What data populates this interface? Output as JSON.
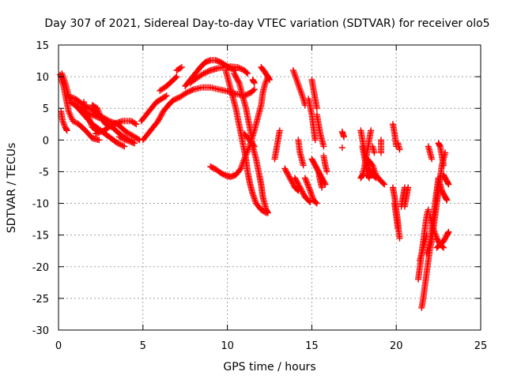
{
  "chart_data": {
    "type": "scatter",
    "title": "Day 307 of 2021, Sidereal Day-to-day VTEC variation (SDTVAR) for receiver olo5",
    "xlabel": "GPS time / hours",
    "ylabel": "SDTVAR / TECUs",
    "xlim": [
      0,
      25
    ],
    "ylim": [
      -30,
      15
    ],
    "xticks": [
      "0",
      "5",
      "10",
      "15",
      "20",
      "25"
    ],
    "yticks": [
      "15",
      "10",
      "5",
      "0",
      "-5",
      "-10",
      "-15",
      "-20",
      "-25",
      "-30"
    ],
    "grid": true,
    "marker": "+",
    "color": "#ff0000",
    "tracks": [
      [
        [
          0.1,
          10.3
        ],
        [
          0.3,
          8.5
        ],
        [
          0.45,
          6.5
        ],
        [
          0.6,
          4.5
        ],
        [
          0.85,
          3.0
        ],
        [
          1.2,
          2.5
        ],
        [
          1.6,
          1.5
        ],
        [
          2.0,
          0.3
        ],
        [
          2.4,
          0.0
        ]
      ],
      [
        [
          0.2,
          10.5
        ],
        [
          0.4,
          9.0
        ],
        [
          0.55,
          7.5
        ],
        [
          0.7,
          6.0
        ],
        [
          1.0,
          5.5
        ],
        [
          1.5,
          4.5
        ],
        [
          2.0,
          4.0
        ],
        [
          2.4,
          3.5
        ]
      ],
      [
        [
          0.15,
          4.5
        ],
        [
          0.25,
          3.0
        ],
        [
          0.4,
          2.0
        ],
        [
          0.5,
          1.5
        ]
      ],
      [
        [
          0.5,
          7.0
        ],
        [
          1.0,
          6.5
        ],
        [
          1.5,
          5.5
        ],
        [
          2.0,
          4.8
        ],
        [
          2.5,
          3.8
        ],
        [
          3.0,
          3.0
        ],
        [
          3.5,
          2.5
        ],
        [
          4.0,
          1.3
        ],
        [
          4.5,
          0.5
        ],
        [
          4.8,
          0.0
        ]
      ],
      [
        [
          1.0,
          5.5
        ],
        [
          1.5,
          4.0
        ],
        [
          2.0,
          2.5
        ],
        [
          2.5,
          1.5
        ],
        [
          3.0,
          0.5
        ],
        [
          3.5,
          -0.5
        ],
        [
          3.9,
          -1.0
        ]
      ],
      [
        [
          1.5,
          6.0
        ],
        [
          1.6,
          4.5
        ],
        [
          1.8,
          3.5
        ],
        [
          2.0,
          2.0
        ],
        [
          2.3,
          1.5
        ]
      ],
      [
        [
          2.0,
          5.5
        ],
        [
          2.3,
          5.0
        ],
        [
          2.5,
          3.5
        ],
        [
          2.8,
          2.5
        ],
        [
          3.2,
          2.0
        ],
        [
          3.6,
          1.0
        ],
        [
          4.0,
          0.3
        ],
        [
          4.5,
          -0.5
        ]
      ],
      [
        [
          2.2,
          1.0
        ],
        [
          2.7,
          1.5
        ],
        [
          3.2,
          2.5
        ],
        [
          3.8,
          3.0
        ],
        [
          4.3,
          3.0
        ],
        [
          4.6,
          2.5
        ]
      ],
      [
        [
          3.6,
          0.5
        ],
        [
          4.0,
          0.0
        ],
        [
          4.5,
          -0.5
        ]
      ],
      [
        [
          4.9,
          3.0
        ],
        [
          5.2,
          4.0
        ],
        [
          5.5,
          5.0
        ],
        [
          5.8,
          6.0
        ],
        [
          6.1,
          6.5
        ],
        [
          6.4,
          7.0
        ]
      ],
      [
        [
          5.0,
          0.0
        ],
        [
          5.3,
          1.0
        ],
        [
          5.6,
          2.0
        ],
        [
          5.9,
          3.0
        ],
        [
          6.2,
          4.5
        ],
        [
          6.5,
          5.5
        ],
        [
          6.8,
          6.3
        ],
        [
          7.2,
          6.8
        ],
        [
          7.6,
          7.5
        ],
        [
          8.0,
          8.0
        ],
        [
          8.5,
          8.3
        ],
        [
          9.0,
          8.3
        ],
        [
          9.5,
          8.0
        ],
        [
          10.0,
          7.7
        ],
        [
          10.5,
          7.3
        ],
        [
          11.0,
          7.0
        ],
        [
          11.4,
          7.5
        ],
        [
          11.6,
          8.0
        ]
      ],
      [
        [
          6.0,
          7.8
        ],
        [
          6.4,
          8.5
        ],
        [
          6.8,
          9.5
        ],
        [
          7.0,
          10.0
        ]
      ],
      [
        [
          7.0,
          11.0
        ],
        [
          7.3,
          11.5
        ]
      ],
      [
        [
          7.5,
          8.5
        ],
        [
          7.8,
          9.5
        ],
        [
          8.1,
          10.5
        ],
        [
          8.4,
          11.5
        ],
        [
          8.7,
          12.3
        ],
        [
          9.0,
          12.6
        ],
        [
          9.3,
          12.6
        ],
        [
          9.6,
          12.3
        ],
        [
          9.9,
          11.8
        ],
        [
          10.2,
          11.3
        ],
        [
          10.5,
          11.0
        ]
      ],
      [
        [
          7.8,
          9.0
        ],
        [
          8.2,
          9.8
        ],
        [
          8.6,
          10.5
        ],
        [
          9.0,
          11.0
        ],
        [
          9.4,
          11.3
        ],
        [
          9.8,
          11.5
        ],
        [
          10.2,
          11.6
        ],
        [
          10.6,
          11.5
        ],
        [
          11.0,
          11.0
        ],
        [
          11.2,
          10.5
        ]
      ],
      [
        [
          10.4,
          10.5
        ],
        [
          10.7,
          9.0
        ],
        [
          10.9,
          7.0
        ],
        [
          11.1,
          5.0
        ],
        [
          11.25,
          3.0
        ],
        [
          11.4,
          1.0
        ],
        [
          11.5,
          -1.0
        ],
        [
          11.7,
          -3.0
        ],
        [
          11.85,
          -5.0
        ],
        [
          12.0,
          -7.0
        ],
        [
          12.1,
          -9.0
        ],
        [
          12.3,
          -11.0
        ],
        [
          12.4,
          -11.5
        ]
      ],
      [
        [
          9.9,
          11.0
        ],
        [
          10.1,
          9.0
        ],
        [
          10.3,
          7.0
        ],
        [
          10.5,
          5.0
        ],
        [
          10.65,
          3.0
        ],
        [
          10.8,
          1.0
        ],
        [
          10.95,
          -1.0
        ],
        [
          11.1,
          -3.0
        ],
        [
          11.2,
          -5.0
        ],
        [
          11.35,
          -7.0
        ],
        [
          11.5,
          -8.5
        ],
        [
          11.7,
          -10.0
        ],
        [
          12.0,
          -11.0
        ],
        [
          12.3,
          -11.5
        ]
      ],
      [
        [
          9.0,
          -4.2
        ],
        [
          9.3,
          -4.6
        ],
        [
          9.6,
          -5.2
        ],
        [
          9.9,
          -5.6
        ],
        [
          10.2,
          -5.8
        ],
        [
          10.5,
          -5.5
        ],
        [
          10.8,
          -4.5
        ],
        [
          11.0,
          -3.0
        ],
        [
          11.3,
          -1.0
        ],
        [
          11.6,
          1.5
        ],
        [
          11.8,
          3.5
        ],
        [
          12.0,
          5.5
        ],
        [
          12.1,
          7.5
        ],
        [
          12.25,
          9.0
        ],
        [
          12.4,
          10.0
        ]
      ],
      [
        [
          11.5,
          9.5
        ],
        [
          11.6,
          9.0
        ]
      ],
      [
        [
          12.0,
          11.5
        ],
        [
          12.2,
          10.8
        ],
        [
          12.4,
          10.0
        ],
        [
          12.5,
          9.5
        ]
      ],
      [
        [
          11.0,
          1.0
        ],
        [
          11.3,
          0.0
        ],
        [
          11.6,
          -1.0
        ]
      ],
      [
        [
          12.8,
          -3.0
        ],
        [
          13.0,
          0.0
        ],
        [
          13.1,
          1.5
        ]
      ],
      [
        [
          13.4,
          -4.5
        ],
        [
          13.7,
          -6.0
        ],
        [
          14.0,
          -7.5
        ],
        [
          14.2,
          -8.0
        ]
      ],
      [
        [
          13.9,
          11.0
        ],
        [
          14.1,
          9.5
        ],
        [
          14.3,
          8.0
        ],
        [
          14.5,
          6.5
        ],
        [
          14.6,
          5.5
        ]
      ],
      [
        [
          14.2,
          0.0
        ],
        [
          14.3,
          -2.0
        ],
        [
          14.5,
          -4.0
        ]
      ],
      [
        [
          14.0,
          -6.0
        ],
        [
          14.3,
          -7.5
        ],
        [
          14.6,
          -9.0
        ],
        [
          14.9,
          -9.8
        ]
      ],
      [
        [
          15.0,
          9.5
        ],
        [
          15.1,
          8.0
        ],
        [
          15.2,
          6.5
        ],
        [
          15.3,
          5.0
        ]
      ],
      [
        [
          14.8,
          6.5
        ],
        [
          15.0,
          4.0
        ],
        [
          15.1,
          2.0
        ],
        [
          15.2,
          0.0
        ]
      ],
      [
        [
          15.3,
          4.0
        ],
        [
          15.4,
          2.5
        ],
        [
          15.5,
          1.0
        ],
        [
          15.6,
          0.0
        ],
        [
          15.7,
          -1.0
        ]
      ],
      [
        [
          15.0,
          -3.0
        ],
        [
          15.2,
          -4.0
        ],
        [
          15.4,
          -5.0
        ],
        [
          15.6,
          -6.0
        ],
        [
          15.8,
          -7.0
        ]
      ],
      [
        [
          14.6,
          -6.0
        ],
        [
          14.9,
          -8.0
        ],
        [
          15.1,
          -9.5
        ],
        [
          15.3,
          -10.0
        ]
      ],
      [
        [
          15.4,
          -5.0
        ],
        [
          15.5,
          -6.5
        ],
        [
          15.6,
          -7.5
        ]
      ],
      [
        [
          15.7,
          -2.5
        ],
        [
          15.8,
          -4.0
        ],
        [
          15.9,
          -5.0
        ]
      ],
      [
        [
          16.8,
          1.3
        ],
        [
          16.9,
          0.5
        ]
      ],
      [
        [
          16.8,
          -1.2
        ]
      ],
      [
        [
          17.9,
          1.5
        ],
        [
          18.0,
          0.0
        ],
        [
          18.1,
          -1.5
        ],
        [
          18.2,
          -3.0
        ],
        [
          18.4,
          -4.5
        ],
        [
          18.6,
          -5.5
        ],
        [
          18.8,
          -6.0
        ]
      ],
      [
        [
          18.0,
          -1.0
        ],
        [
          18.1,
          -2.5
        ],
        [
          18.2,
          -4.0
        ],
        [
          18.3,
          -5.5
        ],
        [
          18.4,
          -6.0
        ]
      ],
      [
        [
          18.5,
          1.5
        ],
        [
          18.4,
          0.0
        ],
        [
          18.3,
          -1.5
        ],
        [
          18.2,
          -3.0
        ],
        [
          18.1,
          -4.5
        ],
        [
          18.0,
          -5.5
        ],
        [
          17.9,
          -6.0
        ]
      ],
      [
        [
          18.3,
          -3.0
        ],
        [
          18.6,
          -4.0
        ],
        [
          18.8,
          -5.5
        ],
        [
          19.1,
          -6.5
        ],
        [
          19.3,
          -7.0
        ]
      ],
      [
        [
          18.6,
          -1.0
        ],
        [
          18.7,
          -2.0
        ]
      ],
      [
        [
          19.1,
          0.0
        ],
        [
          19.1,
          -2.0
        ]
      ],
      [
        [
          19.8,
          2.5
        ],
        [
          19.9,
          1.0
        ],
        [
          20.0,
          -1.0
        ]
      ],
      [
        [
          20.1,
          -0.5
        ],
        [
          20.2,
          -1.5
        ]
      ],
      [
        [
          19.8,
          -7.5
        ],
        [
          19.9,
          -9.0
        ],
        [
          20.0,
          -11.0
        ],
        [
          20.1,
          -13.0
        ],
        [
          20.15,
          -14.5
        ],
        [
          20.2,
          -15.5
        ]
      ],
      [
        [
          20.5,
          -7.5
        ],
        [
          20.4,
          -9.0
        ],
        [
          20.3,
          -10.5
        ]
      ],
      [
        [
          20.7,
          -7.5
        ],
        [
          20.6,
          -9.0
        ],
        [
          20.5,
          -10.5
        ]
      ],
      [
        [
          19.9,
          -10.0
        ],
        [
          20.0,
          -12.0
        ],
        [
          20.1,
          -14.0
        ]
      ],
      [
        [
          21.3,
          -22.0
        ],
        [
          21.4,
          -20.0
        ],
        [
          21.5,
          -18.0
        ],
        [
          21.6,
          -16.0
        ],
        [
          21.7,
          -14.0
        ],
        [
          21.8,
          -12.0
        ],
        [
          21.9,
          -11.0
        ]
      ],
      [
        [
          21.5,
          -26.5
        ],
        [
          21.6,
          -25.0
        ],
        [
          21.7,
          -23.0
        ],
        [
          21.8,
          -21.0
        ],
        [
          21.9,
          -19.0
        ],
        [
          22.0,
          -17.0
        ],
        [
          22.1,
          -16.0
        ],
        [
          22.2,
          -14.0
        ],
        [
          22.3,
          -12.0
        ],
        [
          22.4,
          -10.0
        ],
        [
          22.5,
          -8.0
        ],
        [
          22.6,
          -6.0
        ],
        [
          22.7,
          -4.0
        ],
        [
          22.8,
          -3.0
        ],
        [
          22.9,
          -2.0
        ]
      ],
      [
        [
          21.8,
          -18.0
        ],
        [
          21.9,
          -17.0
        ],
        [
          22.0,
          -16.0
        ],
        [
          22.1,
          -14.0
        ],
        [
          22.2,
          -12.0
        ],
        [
          22.3,
          -10.0
        ],
        [
          22.4,
          -8.0
        ],
        [
          22.5,
          -6.0
        ]
      ],
      [
        [
          21.4,
          -19.0
        ],
        [
          21.6,
          -17.0
        ],
        [
          21.8,
          -15.0
        ]
      ],
      [
        [
          22.0,
          -12.0
        ],
        [
          22.2,
          -14.0
        ],
        [
          22.4,
          -15.5
        ],
        [
          22.6,
          -16.5
        ],
        [
          22.8,
          -17.0
        ]
      ],
      [
        [
          22.4,
          -17.0
        ],
        [
          22.6,
          -16.5
        ],
        [
          22.8,
          -16.0
        ],
        [
          23.0,
          -15.0
        ],
        [
          23.1,
          -14.5
        ]
      ],
      [
        [
          22.8,
          -5.5
        ],
        [
          23.0,
          -6.5
        ],
        [
          23.1,
          -7.0
        ]
      ],
      [
        [
          22.5,
          -0.5
        ],
        [
          22.6,
          -1.0
        ],
        [
          22.7,
          -2.5
        ],
        [
          22.8,
          -4.0
        ]
      ],
      [
        [
          22.6,
          -7.0
        ],
        [
          22.7,
          -8.0
        ],
        [
          22.9,
          -9.0
        ],
        [
          23.0,
          -9.5
        ]
      ],
      [
        [
          21.9,
          -1.0
        ],
        [
          22.0,
          -2.0
        ],
        [
          22.1,
          -3.0
        ]
      ]
    ]
  }
}
